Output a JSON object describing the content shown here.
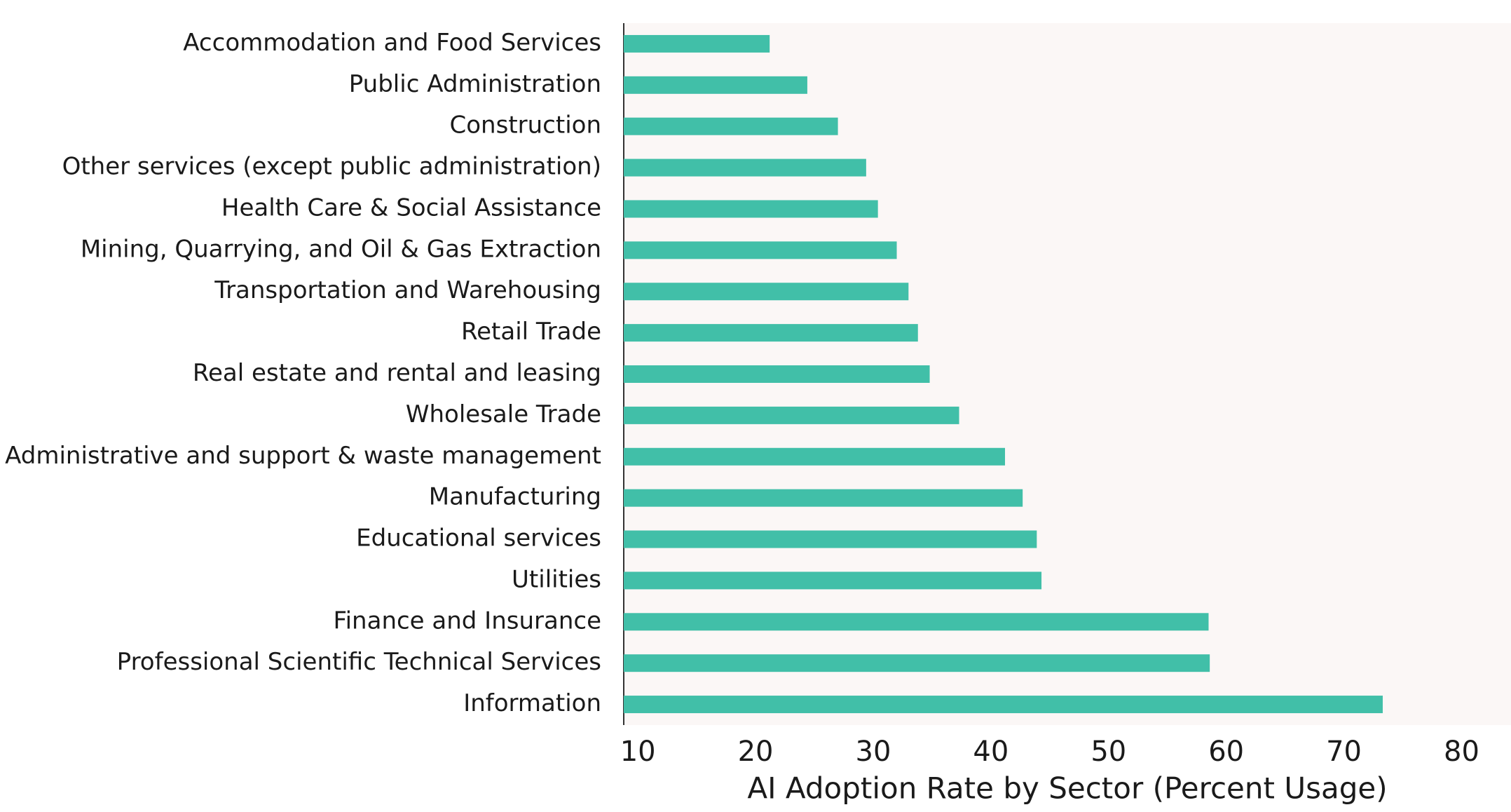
{
  "chart_data": {
    "type": "barh",
    "x_label": "AI Adoption Rate by Sector (Percent Usage)",
    "categories": [
      "Accommodation and Food Services",
      "Public Administration",
      "Construction",
      "Other services (except public administration)",
      "Health Care & Social Assistance",
      "Mining, Quarrying, and Oil & Gas Extraction",
      "Transportation and Warehousing",
      "Retail Trade",
      "Real estate and rental and leasing",
      "Wholesale Trade",
      "Administrative and support & waste management",
      "Manufacturing",
      "Educational services",
      "Utilities",
      "Finance and Insurance",
      "Professional Scientific Technical Services",
      "Information"
    ],
    "values": [
      21.2,
      24.4,
      27.0,
      29.4,
      30.4,
      32.0,
      33.0,
      33.8,
      34.8,
      37.3,
      41.2,
      42.7,
      43.9,
      44.3,
      58.5,
      58.6,
      73.3
    ],
    "color": "#41bfa8",
    "xlim": [
      8.8,
      84.2
    ],
    "xticks": [
      10,
      20,
      30,
      40,
      50,
      60,
      70,
      80
    ],
    "grid": false
  }
}
